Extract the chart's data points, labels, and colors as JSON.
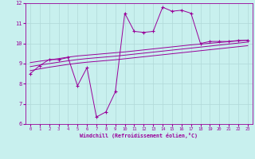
{
  "xlabel": "Windchill (Refroidissement éolien,°C)",
  "bg_color": "#c8f0ee",
  "grid_color": "#b0d8d8",
  "line_color": "#990099",
  "xlim": [
    -0.5,
    23.5
  ],
  "ylim": [
    6,
    12
  ],
  "xticks": [
    0,
    1,
    2,
    3,
    4,
    5,
    6,
    7,
    8,
    9,
    10,
    11,
    12,
    13,
    14,
    15,
    16,
    17,
    18,
    19,
    20,
    21,
    22,
    23
  ],
  "yticks": [
    6,
    7,
    8,
    9,
    10,
    11,
    12
  ],
  "main_x": [
    0,
    1,
    2,
    3,
    4,
    5,
    6,
    7,
    8,
    9,
    10,
    11,
    12,
    13,
    14,
    15,
    16,
    17,
    18,
    19,
    20,
    21,
    22,
    23
  ],
  "main_y": [
    8.5,
    8.9,
    9.2,
    9.2,
    9.3,
    7.9,
    8.8,
    6.35,
    6.6,
    7.6,
    11.5,
    10.6,
    10.55,
    10.6,
    11.8,
    11.6,
    11.65,
    11.5,
    10.0,
    10.1,
    10.1,
    10.1,
    10.15,
    10.15
  ],
  "band_upper_x": [
    0,
    1,
    2,
    3,
    4,
    5,
    6,
    7,
    8,
    9,
    10,
    11,
    12,
    13,
    14,
    15,
    16,
    17,
    18,
    19,
    20,
    21,
    22,
    23
  ],
  "band_upper_y": [
    9.05,
    9.12,
    9.18,
    9.25,
    9.32,
    9.38,
    9.42,
    9.46,
    9.5,
    9.54,
    9.58,
    9.63,
    9.68,
    9.73,
    9.78,
    9.83,
    9.88,
    9.93,
    9.97,
    10.01,
    10.05,
    10.09,
    10.13,
    10.17
  ],
  "band_mid_x": [
    0,
    1,
    2,
    3,
    4,
    5,
    6,
    7,
    8,
    9,
    10,
    11,
    12,
    13,
    14,
    15,
    16,
    17,
    18,
    19,
    20,
    21,
    22,
    23
  ],
  "band_mid_y": [
    8.85,
    8.93,
    9.0,
    9.07,
    9.14,
    9.2,
    9.25,
    9.29,
    9.33,
    9.37,
    9.42,
    9.47,
    9.52,
    9.57,
    9.62,
    9.67,
    9.72,
    9.77,
    9.82,
    9.87,
    9.92,
    9.97,
    10.02,
    10.07
  ],
  "band_lower_x": [
    0,
    1,
    2,
    3,
    4,
    5,
    6,
    7,
    8,
    9,
    10,
    11,
    12,
    13,
    14,
    15,
    16,
    17,
    18,
    19,
    20,
    21,
    22,
    23
  ],
  "band_lower_y": [
    8.65,
    8.74,
    8.82,
    8.89,
    8.96,
    9.02,
    9.07,
    9.11,
    9.15,
    9.19,
    9.24,
    9.29,
    9.34,
    9.39,
    9.44,
    9.49,
    9.54,
    9.59,
    9.64,
    9.69,
    9.74,
    9.79,
    9.84,
    9.89
  ]
}
